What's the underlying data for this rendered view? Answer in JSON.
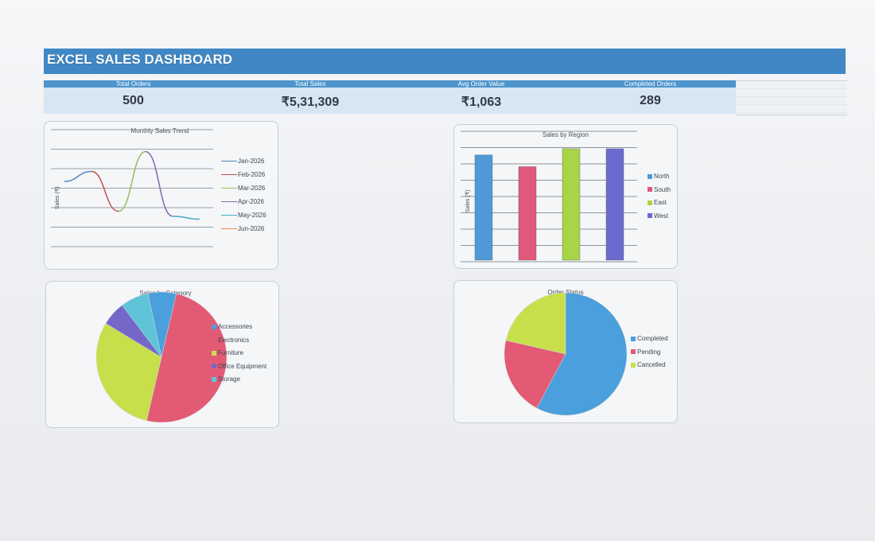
{
  "dashboard": {
    "title": "EXCEL SALES DASHBOARD"
  },
  "kpis": [
    {
      "label": "Total Orders",
      "value": "500"
    },
    {
      "label": "Total Sales",
      "value": "₹5,31,309"
    },
    {
      "label": "Avg Order Value",
      "value": "₹1,063"
    },
    {
      "label": "Completed Orders",
      "value": "289"
    }
  ],
  "chart_data": [
    {
      "type": "line",
      "title": "Monthly Sales Trend",
      "ylabel": "Sales (₹)",
      "xlabel": "",
      "categories": [
        "Jan-2026",
        "Feb-2026",
        "Mar-2026",
        "Apr-2026",
        "May-2026",
        "Jun-2026"
      ],
      "values": [
        60,
        70,
        30,
        90,
        25,
        22
      ],
      "ylim": [
        0,
        100
      ],
      "grid": true,
      "legend": "right",
      "colors": [
        "#4f86c6",
        "#c0504d",
        "#9bbb59",
        "#7f6ab0",
        "#4bacc6",
        "#f08a4b"
      ]
    },
    {
      "type": "bar",
      "title": "Sales by Region",
      "ylabel": "Sales (₹)",
      "xlabel": "",
      "categories": [
        "North",
        "South",
        "East",
        "West"
      ],
      "values": [
        135000,
        120000,
        143000,
        143000
      ],
      "ylim": [
        0,
        145000
      ],
      "grid": true,
      "legend": "right",
      "colors": [
        "#4f9ad6",
        "#e0587a",
        "#a8d448",
        "#6a6ad0"
      ]
    },
    {
      "type": "pie",
      "title": "Sales by Category",
      "categories": [
        "Accessories",
        "Electronics",
        "Furniture",
        "Office Equipment",
        "Storage"
      ],
      "values": [
        7,
        50,
        30,
        6,
        7
      ],
      "legend": "right",
      "colors": [
        "#4a9fdc",
        "#e35a74",
        "#c6df4b",
        "#7567c8",
        "#5fc4d8"
      ]
    },
    {
      "type": "pie",
      "title": "Order Status",
      "categories": [
        "Completed",
        "Pending",
        "Cancelled"
      ],
      "values": [
        289,
        104,
        107
      ],
      "legend": "right",
      "colors": [
        "#4a9fdc",
        "#e35a74",
        "#c6df4b"
      ]
    }
  ]
}
